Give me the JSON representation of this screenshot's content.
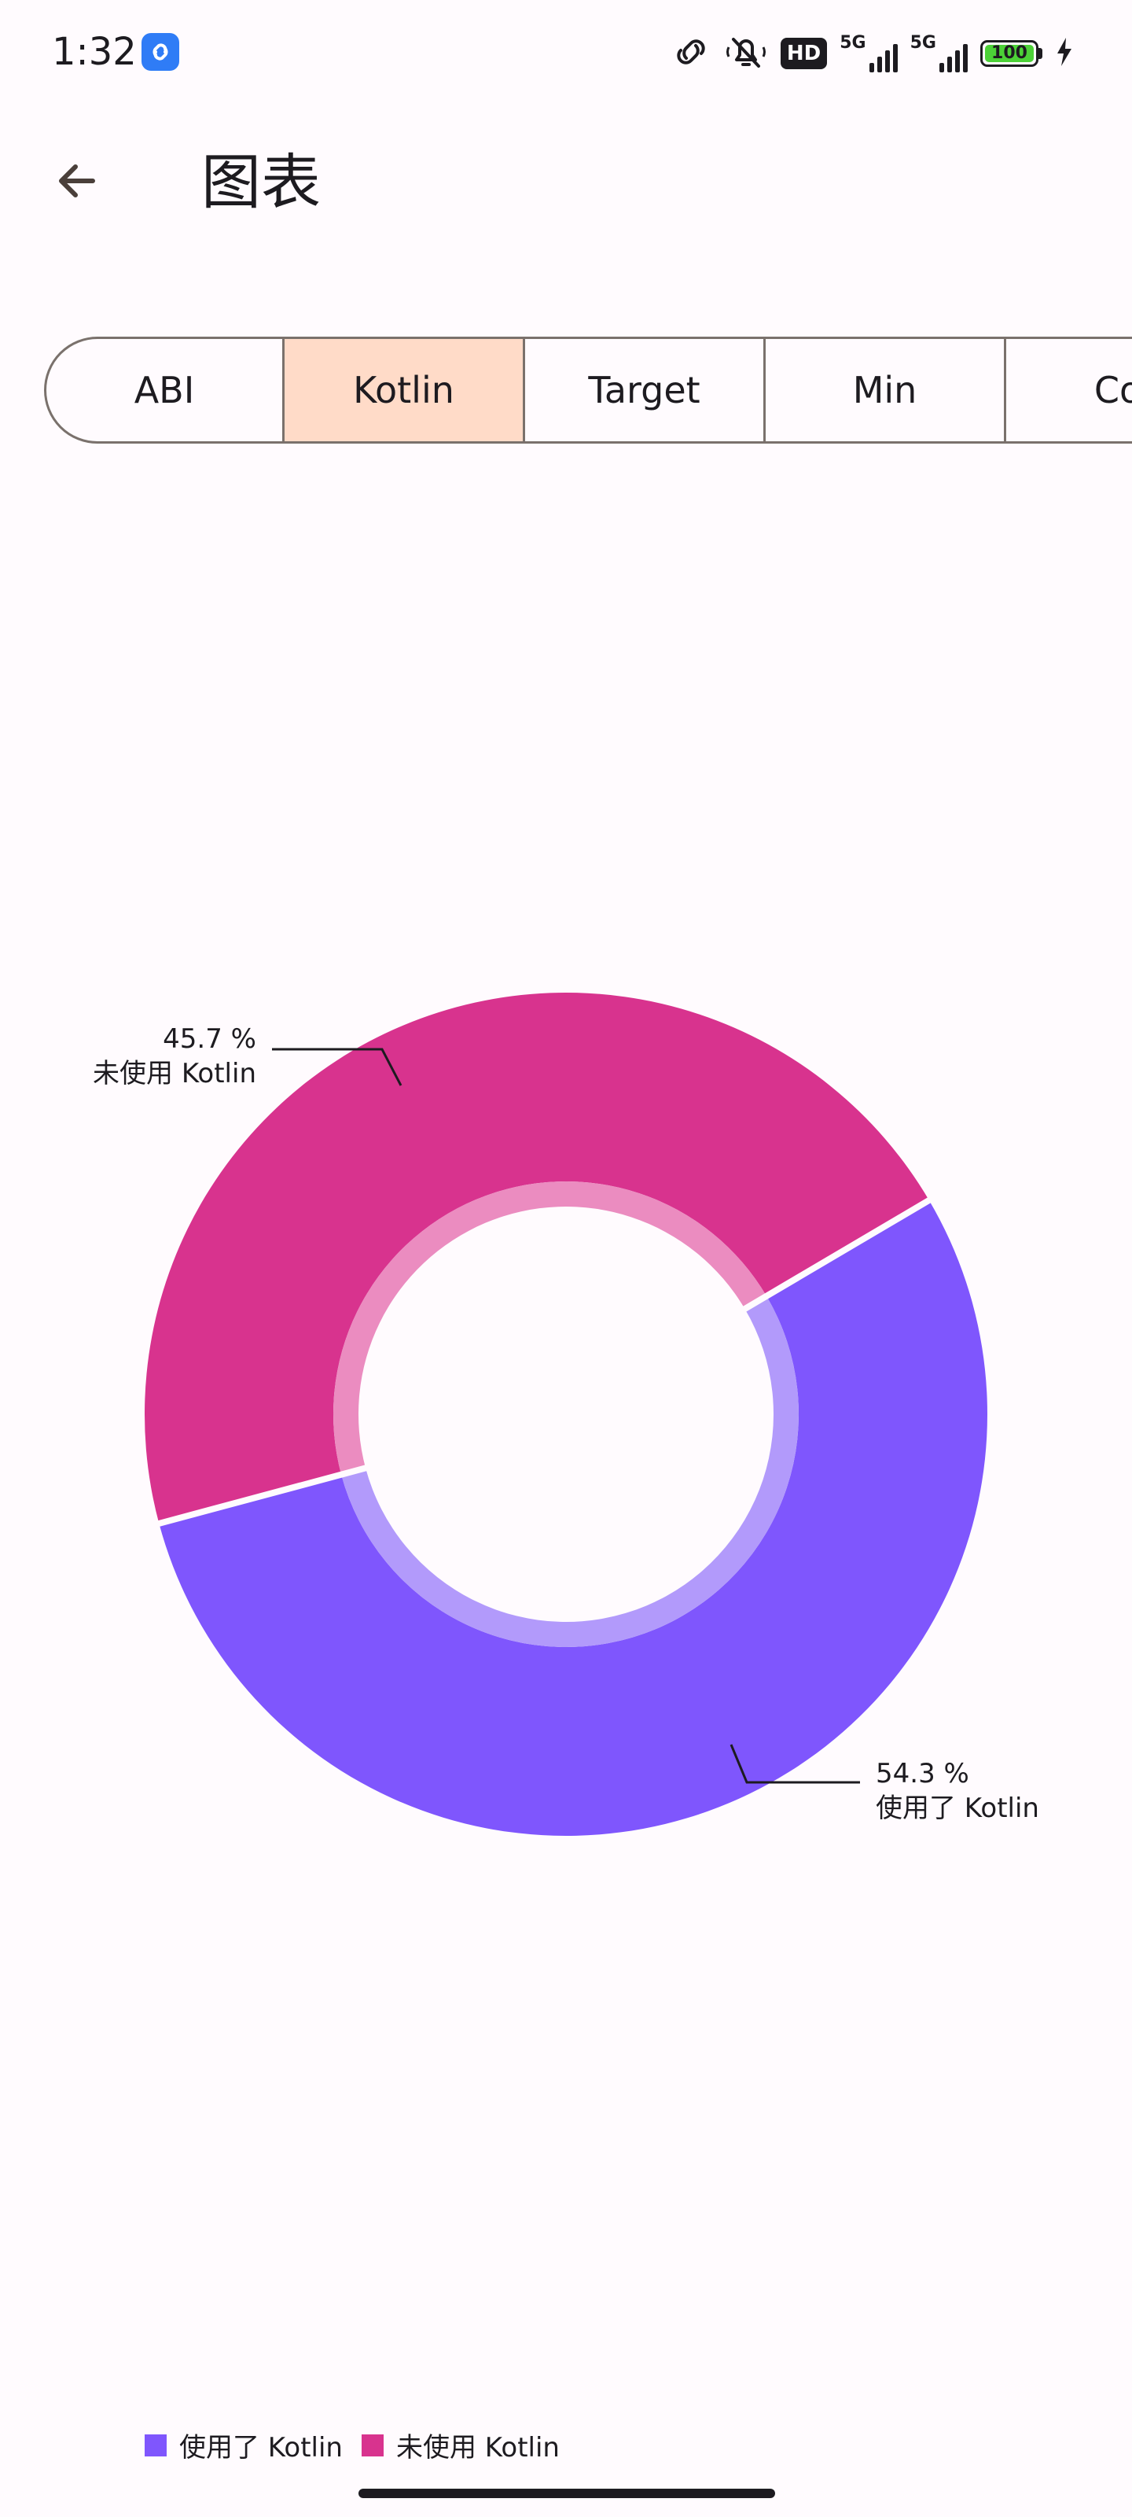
{
  "status_bar": {
    "time": "1:32",
    "hd_label": "HD",
    "network_1": "5G",
    "network_2": "5G",
    "battery": "100"
  },
  "app_bar": {
    "title": "图表"
  },
  "tabs": [
    {
      "label": "ABI",
      "selected": false
    },
    {
      "label": "Kotlin",
      "selected": true
    },
    {
      "label": "Target",
      "selected": false
    },
    {
      "label": "Min",
      "selected": false
    },
    {
      "label": "Cor",
      "selected": false
    }
  ],
  "colors": {
    "used": "#7F56FD",
    "used_inner": "#B29AFB",
    "unused": "#D8338E",
    "unused_inner": "#EB8CC0",
    "tab_selected": "#FFDBC8"
  },
  "chart_data": {
    "type": "pie",
    "donut": true,
    "slices": [
      {
        "label": "使用了 Kotlin",
        "value": 54.3,
        "value_text": "54.3 %"
      },
      {
        "label": "未使用 Kotlin",
        "value": 45.7,
        "value_text": "45.7 %"
      }
    ],
    "legend": [
      "使用了 Kotlin",
      "未使用 Kotlin"
    ],
    "legend_position": "bottom-left"
  }
}
